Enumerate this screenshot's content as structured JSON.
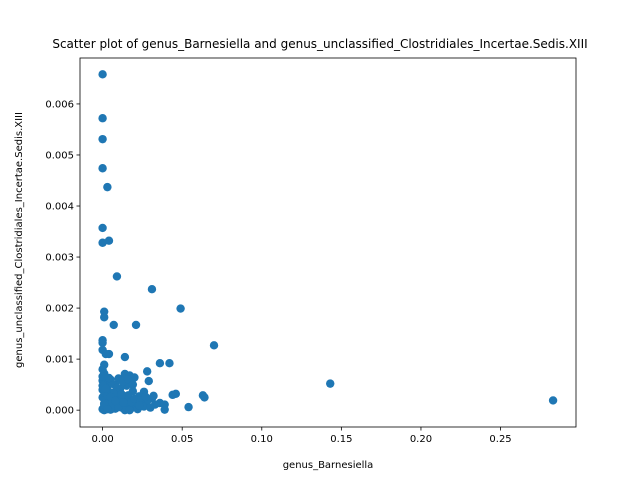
{
  "chart_data": {
    "type": "scatter",
    "title": "Scatter plot of genus_Barnesiella and genus_unclassified_Clostridiales_Incertae.Sedis.XIII",
    "xlabel": "genus_Barnesiella",
    "ylabel": "genus_unclassified_Clostridiales_Incertae.Sedis.XIII",
    "xlim": [
      -0.0142,
      0.2974
    ],
    "ylim": [
      -0.00033,
      0.0069
    ],
    "x_ticks": [
      0.0,
      0.05,
      0.1,
      0.15,
      0.2,
      0.25
    ],
    "x_tick_labels": [
      "0.00",
      "0.05",
      "0.10",
      "0.15",
      "0.20",
      "0.25"
    ],
    "y_ticks": [
      0.0,
      0.001,
      0.002,
      0.003,
      0.004,
      0.005,
      0.006
    ],
    "y_tick_labels": [
      "0.000",
      "0.001",
      "0.002",
      "0.003",
      "0.004",
      "0.005",
      "0.006"
    ],
    "grid": false,
    "marker_color": "#1f77b4",
    "series": [
      {
        "points": [
          [
            0.0,
            0.00658
          ],
          [
            0.0,
            0.00572
          ],
          [
            0.0,
            0.00531
          ],
          [
            0.0,
            0.00474
          ],
          [
            0.003,
            0.00437
          ],
          [
            0.0,
            0.00357
          ],
          [
            0.004,
            0.00332
          ],
          [
            0.0,
            0.00328
          ],
          [
            0.009,
            0.00262
          ],
          [
            0.031,
            0.00237
          ],
          [
            0.049,
            0.00199
          ],
          [
            0.001,
            0.00193
          ],
          [
            0.001,
            0.00182
          ],
          [
            0.007,
            0.00167
          ],
          [
            0.021,
            0.00167
          ],
          [
            0.0,
            0.00137
          ],
          [
            0.0,
            0.00132
          ],
          [
            0.07,
            0.00127
          ],
          [
            0.0,
            0.00118
          ],
          [
            0.004,
            0.0011
          ],
          [
            0.002,
            0.0011
          ],
          [
            0.014,
            0.00104
          ],
          [
            0.036,
            0.00092
          ],
          [
            0.042,
            0.00092
          ],
          [
            0.001,
            0.00089
          ],
          [
            0.0,
            0.0008
          ],
          [
            0.028,
            0.00076
          ],
          [
            0.001,
            0.00072
          ],
          [
            0.014,
            0.00071
          ],
          [
            0.017,
            0.00068
          ],
          [
            0.02,
            0.00064
          ],
          [
            0.01,
            0.00062
          ],
          [
            0.005,
            0.0006
          ],
          [
            0.012,
            0.00058
          ],
          [
            0.029,
            0.00057
          ],
          [
            0.143,
            0.00052
          ],
          [
            0.002,
            0.00052
          ],
          [
            0.008,
            0.00049
          ],
          [
            0.015,
            0.00048
          ],
          [
            0.003,
            0.00045
          ],
          [
            0.011,
            0.00042
          ],
          [
            0.0,
            0.0004
          ],
          [
            0.019,
            0.00037
          ],
          [
            0.026,
            0.00036
          ],
          [
            0.006,
            0.00034
          ],
          [
            0.046,
            0.00032
          ],
          [
            0.044,
            0.0003
          ],
          [
            0.063,
            0.00029
          ],
          [
            0.009,
            0.00029
          ],
          [
            0.023,
            0.00027
          ],
          [
            0.064,
            0.00025
          ],
          [
            0.013,
            0.00024
          ],
          [
            0.031,
            0.00023
          ],
          [
            0.002,
            0.00022
          ],
          [
            0.283,
            0.00019
          ],
          [
            0.017,
            0.00019
          ],
          [
            0.028,
            0.00018
          ],
          [
            0.004,
            0.00017
          ],
          [
            0.036,
            0.00014
          ],
          [
            0.01,
            0.00014
          ],
          [
            0.001,
            0.00013
          ],
          [
            0.021,
            0.00012
          ],
          [
            0.033,
            0.00011
          ],
          [
            0.007,
            0.0001
          ],
          [
            0.039,
            0.00011
          ],
          [
            0.015,
            9e-05
          ],
          [
            0.054,
            6e-05
          ],
          [
            0.026,
            7e-05
          ],
          [
            0.003,
            6e-05
          ],
          [
            0.03,
            5e-05
          ],
          [
            0.012,
            5e-05
          ],
          [
            0.018,
            4e-05
          ],
          [
            0.008,
            3e-05
          ],
          [
            0.039,
            1e-05
          ],
          [
            0.0,
            2e-05
          ],
          [
            0.005,
            1e-05
          ],
          [
            0.022,
            2e-05
          ],
          [
            0.001,
            0.0
          ],
          [
            0.014,
            0.0
          ],
          [
            0.017,
            0.0
          ],
          [
            0.0,
            0.00025
          ],
          [
            0.0,
            0.00058
          ],
          [
            0.0,
            0.00048
          ],
          [
            0.0,
            0.00066
          ],
          [
            0.001,
            0.00035
          ],
          [
            0.002,
            0.00015
          ],
          [
            0.003,
            0.00028
          ],
          [
            0.006,
            0.00052
          ],
          [
            0.006,
            0.00012
          ],
          [
            0.009,
            0.00044
          ],
          [
            0.011,
            0.0002
          ],
          [
            0.013,
            0.00055
          ],
          [
            0.016,
            0.00029
          ],
          [
            0.018,
            0.00016
          ],
          [
            0.02,
            0.00022
          ],
          [
            0.024,
            0.00019
          ],
          [
            0.027,
            0.00026
          ],
          [
            0.025,
            8e-05
          ],
          [
            0.032,
            0.00028
          ],
          [
            0.004,
            0.00063
          ],
          [
            0.007,
            0.00033
          ],
          [
            0.012,
            0.00031
          ],
          [
            0.016,
            0.0006
          ],
          [
            0.019,
            0.0005
          ],
          [
            0.002,
            0.00042
          ],
          [
            0.005,
            0.00026
          ],
          [
            0.01,
            6e-05
          ],
          [
            0.001,
            0.0001
          ],
          [
            0.008,
            0.00018
          ],
          [
            0.003,
            2e-05
          ],
          [
            0.013,
            0.00015
          ],
          [
            0.023,
            9e-05
          ]
        ]
      }
    ]
  }
}
